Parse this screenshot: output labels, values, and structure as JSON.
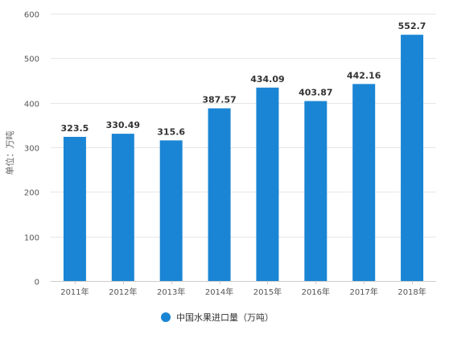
{
  "colors": {
    "bar": "#1a85d4",
    "grid": "#e6e6e6",
    "axis": "#cccccc"
  },
  "chart_data": {
    "type": "bar",
    "categories": [
      "2011年",
      "2012年",
      "2013年",
      "2014年",
      "2015年",
      "2016年",
      "2017年",
      "2018年"
    ],
    "series": [
      {
        "name": "中国水果进口量（万吨）",
        "values": [
          323.5,
          330.49,
          315.6,
          387.57,
          434.09,
          403.87,
          442.16,
          552.7
        ],
        "labels": [
          "323.5",
          "330.49",
          "315.6",
          "387.57",
          "434.09",
          "403.87",
          "442.16",
          "552.7"
        ]
      }
    ],
    "ylabel": "单位：万吨",
    "ylim": [
      0,
      600
    ],
    "yticks": [
      0,
      100,
      200,
      300,
      400,
      500,
      600
    ],
    "grid": true,
    "legend": "bottom-center"
  }
}
